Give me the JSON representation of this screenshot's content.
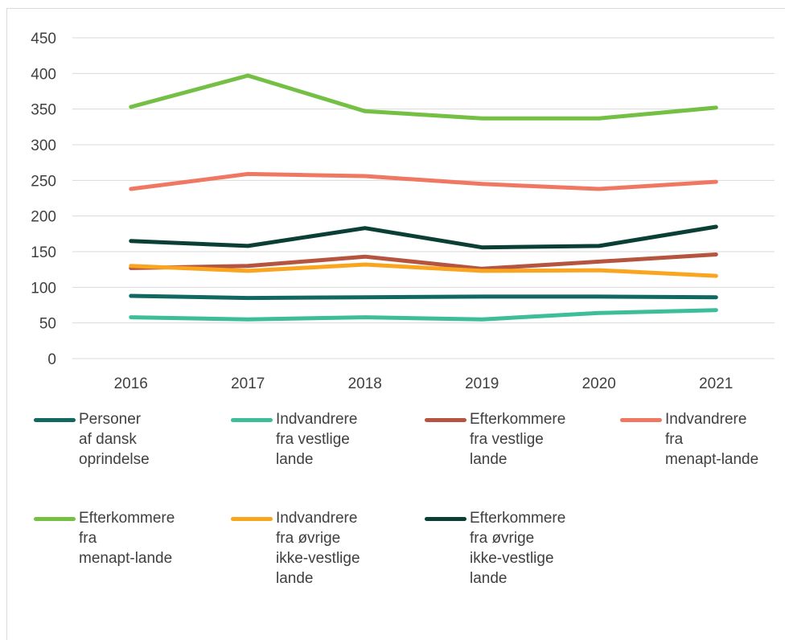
{
  "title": "",
  "chart_data": {
    "type": "line",
    "categories": [
      "2016",
      "2017",
      "2018",
      "2019",
      "2020",
      "2021"
    ],
    "ylim": [
      0,
      450
    ],
    "yticks": [
      0,
      50,
      100,
      150,
      200,
      250,
      300,
      350,
      400,
      450
    ],
    "grid": true,
    "legend_position": "bottom",
    "series": [
      {
        "name": "Personer af dansk oprindelse",
        "label_lines": "Personer\naf dansk\noprindelse",
        "color": "#106861",
        "values": [
          88,
          85,
          86,
          87,
          87,
          86
        ]
      },
      {
        "name": "Indvandrere fra vestlige lande",
        "label_lines": "Indvandrere\nfra vestlige\nlande",
        "color": "#3dbd9a",
        "values": [
          58,
          55,
          58,
          55,
          64,
          68
        ]
      },
      {
        "name": "Efterkommere fra vestlige lande",
        "label_lines": "Efterkommere\nfra vestlige\nlande",
        "color": "#b5553f",
        "values": [
          127,
          130,
          143,
          126,
          136,
          146
        ]
      },
      {
        "name": "Indvandrere fra menapt-lande",
        "label_lines": "Indvandrere\nfra\nmenapt-lande",
        "color": "#f07862",
        "values": [
          238,
          259,
          256,
          245,
          238,
          248
        ]
      },
      {
        "name": "Efterkommere fra menapt-lande",
        "label_lines": "Efterkommere\nfra\nmenapt-lande",
        "color": "#73c044",
        "values": [
          353,
          397,
          347,
          337,
          337,
          352
        ]
      },
      {
        "name": "Indvandrere fra øvrige ikke-vestlige lande",
        "label_lines": "Indvandrere\nfra øvrige\nikke-vestlige\nlande",
        "color": "#f9a51f",
        "values": [
          130,
          123,
          132,
          123,
          124,
          116
        ]
      },
      {
        "name": "Efterkommere fra øvrige ikke-vestlige lande",
        "label_lines": "Efterkommere\nfra øvrige\nikke-vestlige\nlande",
        "color": "#0a3f36",
        "values": [
          165,
          158,
          183,
          156,
          158,
          185
        ]
      }
    ]
  }
}
